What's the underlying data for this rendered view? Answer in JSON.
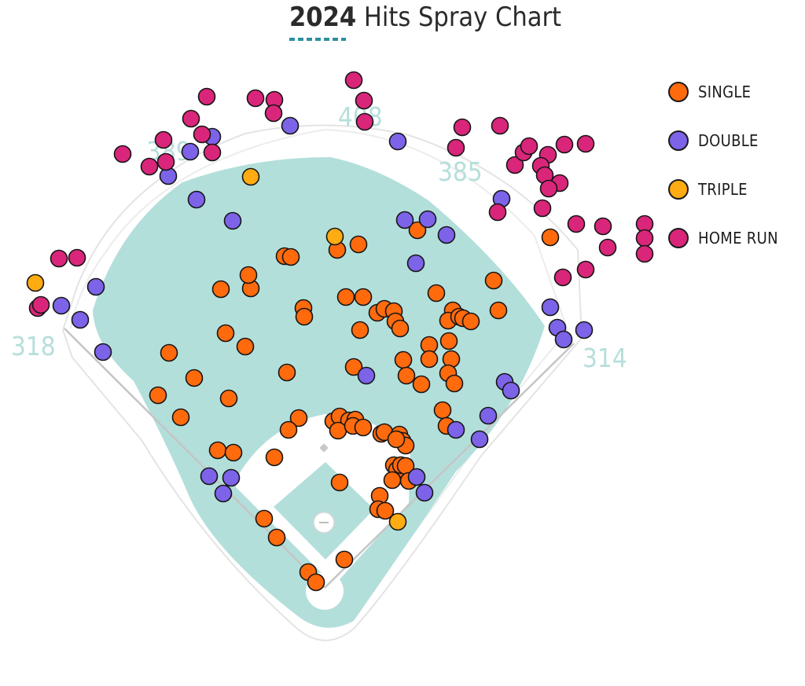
{
  "chart_data": {
    "type": "scatter",
    "title_year": "2024",
    "title_rest": "Hits Spray Chart",
    "distances": [
      {
        "key": "lf",
        "label": "318"
      },
      {
        "key": "lcf",
        "label": "389"
      },
      {
        "key": "cf",
        "label": "408"
      },
      {
        "key": "rcf",
        "label": "385"
      },
      {
        "key": "rf",
        "label": "314"
      }
    ],
    "legend": [
      {
        "key": "single",
        "label": "SINGLE",
        "color": "#ff6a0d"
      },
      {
        "key": "double",
        "label": "DOUBLE",
        "color": "#7c63e8"
      },
      {
        "key": "triple",
        "label": "TRIPLE",
        "color": "#ffab12"
      },
      {
        "key": "hr",
        "label": "HOME RUN",
        "color": "#d9267a"
      }
    ],
    "units": "approximate spray-chart position (0-1000 grid)",
    "series": [
      {
        "name": "SINGLE",
        "key": "single",
        "points": [
          [
            319,
            367
          ],
          [
            362,
            326
          ],
          [
            370,
            327
          ],
          [
            429,
            318
          ],
          [
            456,
            311
          ],
          [
            316,
            350
          ],
          [
            281,
            368
          ],
          [
            287,
            424
          ],
          [
            312,
            441
          ],
          [
            215,
            449
          ],
          [
            247,
            481
          ],
          [
            201,
            503
          ],
          [
            230,
            531
          ],
          [
            291,
            507
          ],
          [
            365,
            474
          ],
          [
            386,
            392
          ],
          [
            387,
            403
          ],
          [
            440,
            378
          ],
          [
            462,
            378
          ],
          [
            458,
            420
          ],
          [
            480,
            398
          ],
          [
            489,
            393
          ],
          [
            501,
            396
          ],
          [
            503,
            409
          ],
          [
            509,
            418
          ],
          [
            450,
            467
          ],
          [
            513,
            458
          ],
          [
            517,
            478
          ],
          [
            536,
            489
          ],
          [
            531,
            293
          ],
          [
            555,
            373
          ],
          [
            576,
            395
          ],
          [
            570,
            408
          ],
          [
            584,
            403
          ],
          [
            589,
            405
          ],
          [
            599,
            409
          ],
          [
            634,
            395
          ],
          [
            628,
            357
          ],
          [
            546,
            439
          ],
          [
            571,
            434
          ],
          [
            546,
            457
          ],
          [
            574,
            457
          ],
          [
            570,
            475
          ],
          [
            578,
            488
          ],
          [
            563,
            522
          ],
          [
            568,
            542
          ],
          [
            380,
            532
          ],
          [
            367,
            547
          ],
          [
            424,
            536
          ],
          [
            432,
            530
          ],
          [
            444,
            535
          ],
          [
            452,
            534
          ],
          [
            430,
            548
          ],
          [
            449,
            542
          ],
          [
            462,
            544
          ],
          [
            485,
            552
          ],
          [
            489,
            550
          ],
          [
            508,
            553
          ],
          [
            512,
            561
          ],
          [
            516,
            567
          ],
          [
            504,
            559
          ],
          [
            277,
            573
          ],
          [
            297,
            576
          ],
          [
            349,
            582
          ],
          [
            432,
            614
          ],
          [
            501,
            592
          ],
          [
            505,
            598
          ],
          [
            510,
            592
          ],
          [
            516,
            593
          ],
          [
            520,
            612
          ],
          [
            499,
            611
          ],
          [
            483,
            631
          ],
          [
            481,
            648
          ],
          [
            490,
            650
          ],
          [
            336,
            660
          ],
          [
            352,
            684
          ],
          [
            438,
            712
          ],
          [
            392,
            728
          ],
          [
            402,
            741
          ],
          [
            700,
            302
          ]
        ]
      },
      {
        "name": "DOUBLE",
        "key": "double",
        "points": [
          [
            214,
            224
          ],
          [
            242,
            193
          ],
          [
            270,
            174
          ],
          [
            250,
            254
          ],
          [
            296,
            281
          ],
          [
            369,
            160
          ],
          [
            506,
            180
          ],
          [
            638,
            253
          ],
          [
            515,
            280
          ],
          [
            544,
            279
          ],
          [
            568,
            299
          ],
          [
            529,
            335
          ],
          [
            122,
            365
          ],
          [
            78,
            389
          ],
          [
            102,
            407
          ],
          [
            131,
            448
          ],
          [
            466,
            478
          ],
          [
            642,
            486
          ],
          [
            650,
            497
          ],
          [
            621,
            529
          ],
          [
            580,
            547
          ],
          [
            610,
            559
          ],
          [
            700,
            391
          ],
          [
            709,
            417
          ],
          [
            717,
            432
          ],
          [
            743,
            420
          ],
          [
            266,
            606
          ],
          [
            294,
            608
          ],
          [
            284,
            628
          ],
          [
            530,
            607
          ],
          [
            540,
            627
          ]
        ]
      },
      {
        "name": "TRIPLE",
        "key": "triple",
        "points": [
          [
            319,
            225
          ],
          [
            426,
            301
          ],
          [
            45,
            360
          ],
          [
            506,
            664
          ]
        ]
      },
      {
        "name": "HOME RUN",
        "key": "hr",
        "points": [
          [
            450,
            102
          ],
          [
            463,
            128
          ],
          [
            464,
            155
          ],
          [
            349,
            127
          ],
          [
            348,
            144
          ],
          [
            325,
            125
          ],
          [
            263,
            123
          ],
          [
            243,
            151
          ],
          [
            257,
            171
          ],
          [
            208,
            178
          ],
          [
            211,
            206
          ],
          [
            190,
            212
          ],
          [
            156,
            196
          ],
          [
            270,
            194
          ],
          [
            588,
            162
          ],
          [
            636,
            160
          ],
          [
            580,
            188
          ],
          [
            655,
            210
          ],
          [
            666,
            194
          ],
          [
            673,
            186
          ],
          [
            697,
            197
          ],
          [
            718,
            184
          ],
          [
            745,
            183
          ],
          [
            688,
            211
          ],
          [
            693,
            223
          ],
          [
            712,
            233
          ],
          [
            698,
            240
          ],
          [
            633,
            270
          ],
          [
            690,
            265
          ],
          [
            733,
            285
          ],
          [
            767,
            288
          ],
          [
            773,
            315
          ],
          [
            745,
            343
          ],
          [
            716,
            353
          ],
          [
            820,
            285
          ],
          [
            820,
            303
          ],
          [
            820,
            323
          ],
          [
            75,
            329
          ],
          [
            98,
            328
          ],
          [
            48,
            392
          ],
          [
            52,
            388
          ]
        ]
      }
    ]
  }
}
